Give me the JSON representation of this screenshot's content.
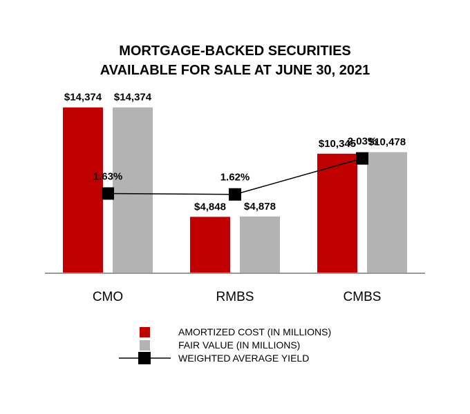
{
  "chart_data": {
    "type": "bar",
    "title_lines": [
      "MORTGAGE-BACKED SECURITIES",
      "AVAILABLE FOR SALE AT JUNE 30, 2021"
    ],
    "categories": [
      "CMO",
      "RMBS",
      "CMBS"
    ],
    "series": [
      {
        "name": "AMORTIZED COST (IN MILLIONS)",
        "values": [
          14374,
          4848,
          10345
        ],
        "labels": [
          "$14,374",
          "$4,848",
          "$10,345"
        ],
        "color": "#c00000"
      },
      {
        "name": "FAIR VALUE (IN MILLIONS)",
        "values": [
          14374,
          4878,
          10478
        ],
        "labels": [
          "$14,374",
          "$4,878",
          "$10,478"
        ],
        "color": "#b3b3b3"
      }
    ],
    "line_series": {
      "name": "WEIGHTED AVERAGE YIELD",
      "values": [
        1.63,
        1.62,
        2.03
      ],
      "labels": [
        "1.63%",
        "1.62%",
        "2.03%"
      ],
      "color": "#000000",
      "ylim": [
        -0.1,
        3.0
      ]
    },
    "ylim": [
      0,
      15000
    ],
    "grid": false,
    "legend_position": "bottom-center"
  }
}
